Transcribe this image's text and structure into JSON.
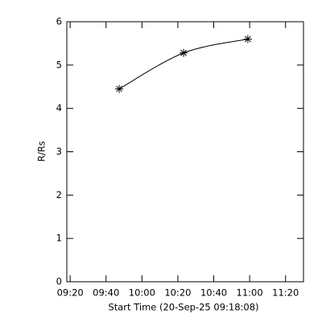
{
  "chart_data": {
    "type": "line",
    "x_label": "Start Time (20-Sep-25 09:18:08)",
    "y_label": "R/Rs",
    "x": [
      587.3,
      623.2,
      659.0
    ],
    "values": [
      4.45,
      5.28,
      5.6
    ],
    "color": "#000000",
    "marker": "asterisk",
    "xlim": [
      558.13,
      690
    ],
    "xticks": [
      {
        "value": 560,
        "label": "09:20"
      },
      {
        "value": 580,
        "label": "09:40"
      },
      {
        "value": 600,
        "label": "10:00"
      },
      {
        "value": 620,
        "label": "10:20"
      },
      {
        "value": 640,
        "label": "10:40"
      },
      {
        "value": 660,
        "label": "11:00"
      },
      {
        "value": 680,
        "label": "11:20"
      }
    ],
    "ylim": [
      0,
      6
    ],
    "yticks": [
      0,
      1,
      2,
      3,
      4,
      5,
      6
    ]
  }
}
